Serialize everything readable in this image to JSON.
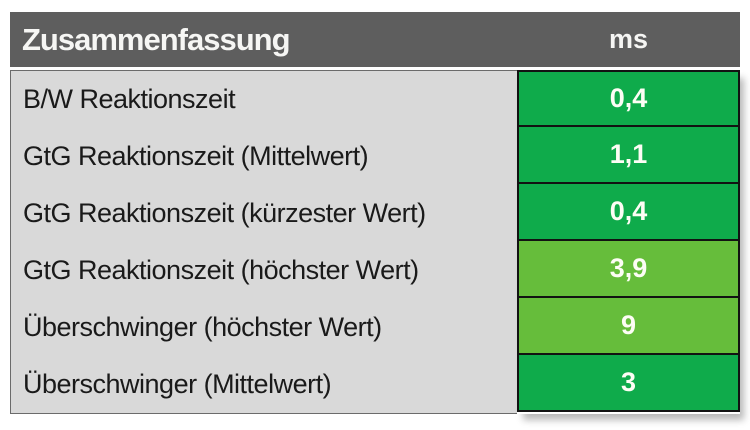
{
  "chart_data": {
    "type": "table",
    "title": "Zusammenfassung",
    "unit": "ms",
    "columns": [
      "Zusammenfassung",
      "ms"
    ],
    "rows": [
      {
        "label": "B/W Reaktionszeit",
        "value": "0,4",
        "rating_color": "#0FAB4B"
      },
      {
        "label": "GtG Reaktionszeit (Mittelwert)",
        "value": "1,1",
        "rating_color": "#0FAB4B"
      },
      {
        "label": "GtG Reaktionszeit (kürzester Wert)",
        "value": "0,4",
        "rating_color": "#0FAB4B"
      },
      {
        "label": "GtG Reaktionszeit (höchster Wert)",
        "value": "3,9",
        "rating_color": "#66BD3B"
      },
      {
        "label": "Überschwinger (höchster Wert)",
        "value": "9",
        "rating_color": "#66BD3B"
      },
      {
        "label": "Überschwinger (Mittelwert)",
        "value": "3",
        "rating_color": "#0FAB4B"
      }
    ]
  },
  "colors": {
    "header_bg": "#5E5E5E",
    "header_text": "#F6F6F4",
    "label_bg": "#D9D9D9",
    "label_text": "#1A1A1A",
    "value_good": "#0FAB4B",
    "value_ok": "#66BD3B",
    "cell_border": "#121212"
  }
}
